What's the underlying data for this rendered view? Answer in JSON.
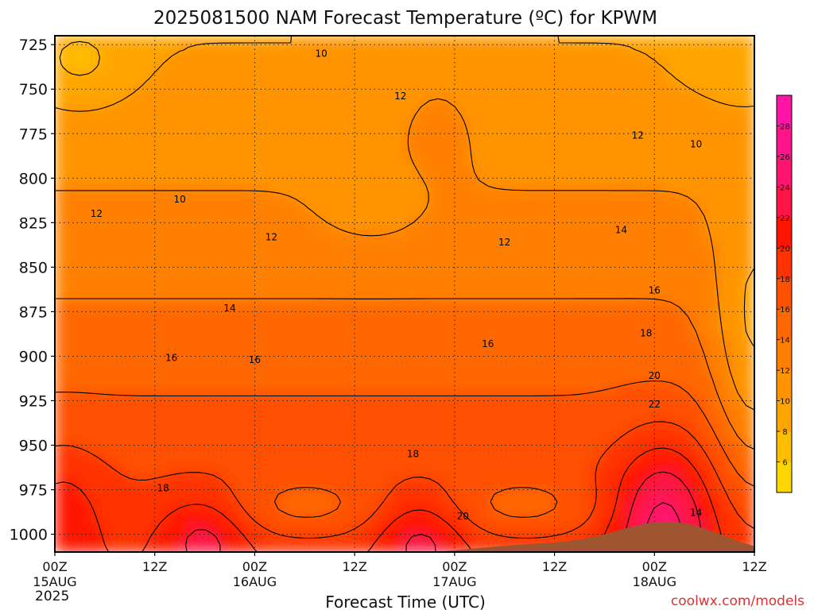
{
  "chart_data": {
    "type": "heatmap",
    "title": "2025081500 NAM Forecast Temperature (ºC) for KPWM",
    "xlabel": "Forecast Time (UTC)",
    "ylabel": "",
    "x_ticks": [
      "00Z",
      "12Z",
      "00Z",
      "12Z",
      "00Z",
      "12Z",
      "00Z",
      "12Z"
    ],
    "x_dates": [
      "15AUG",
      "",
      "16AUG",
      "",
      "17AUG",
      "",
      "18AUG",
      ""
    ],
    "x_year": "2025",
    "xlim_hours": [
      0,
      84
    ],
    "y_ticks": [
      725,
      750,
      775,
      800,
      825,
      850,
      875,
      900,
      925,
      950,
      975,
      1000
    ],
    "ylim_hpa": [
      1010,
      720
    ],
    "grid": true,
    "colorbar": {
      "levels": [
        4,
        6,
        8,
        10,
        12,
        14,
        16,
        18,
        20,
        22,
        24,
        26,
        28,
        30
      ],
      "labels": [
        "6",
        "8",
        "10",
        "12",
        "14",
        "16",
        "18",
        "20",
        "22",
        "24",
        "26",
        "28"
      ],
      "colors": [
        "#ffd700",
        "#ffbe00",
        "#ffa500",
        "#ff9400",
        "#ff8000",
        "#ff6800",
        "#ff5000",
        "#ff3200",
        "#ff1400",
        "#ff1448",
        "#ff1470",
        "#ff148c",
        "#ff14a8"
      ]
    },
    "contour_labels": [
      {
        "text": "10",
        "hour": 32,
        "hpa": 730
      },
      {
        "text": "12",
        "hour": 41.5,
        "hpa": 754
      },
      {
        "text": "12",
        "hour": 70,
        "hpa": 776
      },
      {
        "text": "10",
        "hour": 77,
        "hpa": 781
      },
      {
        "text": "10",
        "hour": 15,
        "hpa": 812
      },
      {
        "text": "12",
        "hour": 5,
        "hpa": 820
      },
      {
        "text": "12",
        "hour": 26,
        "hpa": 833
      },
      {
        "text": "12",
        "hour": 54,
        "hpa": 836
      },
      {
        "text": "14",
        "hour": 68,
        "hpa": 829
      },
      {
        "text": "16",
        "hour": 72,
        "hpa": 863
      },
      {
        "text": "14",
        "hour": 21,
        "hpa": 873
      },
      {
        "text": "16",
        "hour": 52,
        "hpa": 893
      },
      {
        "text": "18",
        "hour": 71,
        "hpa": 887
      },
      {
        "text": "16",
        "hour": 14,
        "hpa": 901
      },
      {
        "text": "16",
        "hour": 24,
        "hpa": 902
      },
      {
        "text": "20",
        "hour": 72,
        "hpa": 911
      },
      {
        "text": "22",
        "hour": 72,
        "hpa": 927
      },
      {
        "text": "18",
        "hour": 43,
        "hpa": 955
      },
      {
        "text": "18",
        "hour": 13,
        "hpa": 974
      },
      {
        "text": "20",
        "hour": 49,
        "hpa": 990
      },
      {
        "text": "14",
        "hour": 77,
        "hpa": 988
      }
    ]
  },
  "credit": "coolwx.com/models"
}
